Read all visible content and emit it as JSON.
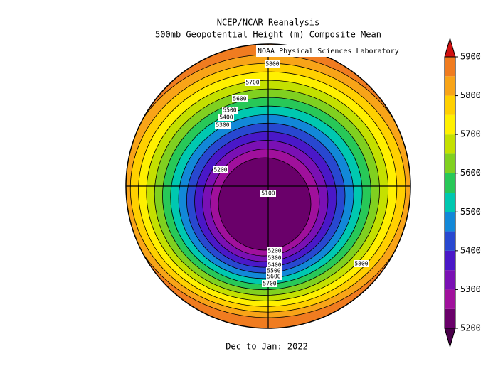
{
  "header": {
    "title": "NCEP/NCAR Reanalysis",
    "subtitle": "500mb Geopotential Height (m) Composite Mean",
    "credit": "NOAA Physical Sciences Laboratory"
  },
  "footer": {
    "period": "Dec to Jan: 2022"
  },
  "colorbar": {
    "ticks": [
      5200,
      5300,
      5400,
      5500,
      5600,
      5700,
      5800,
      5900
    ],
    "colors": [
      "#6a006a",
      "#a0109c",
      "#7a10b4",
      "#4a18c8",
      "#2848d0",
      "#1288d8",
      "#00c8b0",
      "#28c858",
      "#80d020",
      "#c4e000",
      "#fff000",
      "#ffd000",
      "#f8a418",
      "#f07c20"
    ],
    "under": "#4a004a",
    "over": "#d01010"
  },
  "contour_labels": [
    5800,
    5700,
    5600,
    5500,
    5400,
    5300,
    5200,
    5100,
    5200,
    5300,
    5400,
    5500,
    5600,
    5700,
    5800
  ]
}
